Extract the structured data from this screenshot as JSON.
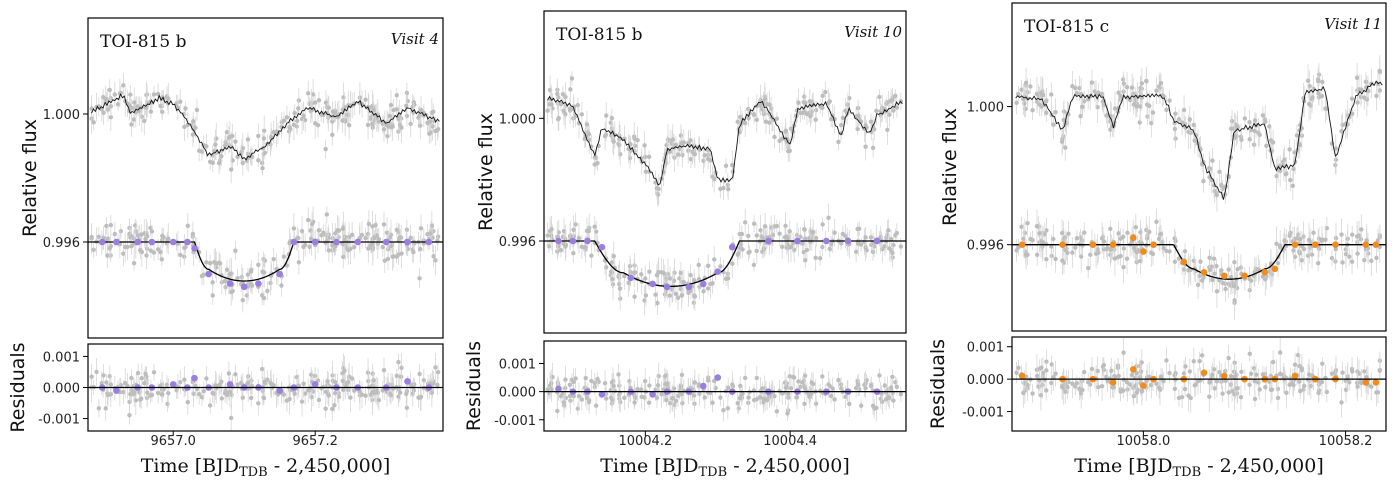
{
  "chart_data": [
    {
      "type": "scatter",
      "title": "TOI-815 b",
      "annotation": "Visit 4",
      "xlabel": "Time [BJD",
      "xlabel_sub": "TDB",
      "xlabel_tail": " - 2,450,000]",
      "ylabel": "Relative flux",
      "residual_ylabel": "Residuals",
      "bin_color": "#9b7fe0",
      "xlim": [
        9656.88,
        9657.38
      ],
      "xticks": [
        "9657.0",
        "9657.2"
      ],
      "xtick_values": [
        9657.0,
        9657.2
      ],
      "ylim": [
        0.993,
        1.003
      ],
      "yticks": [
        "1.000",
        "0.996"
      ],
      "ytick_values": [
        1.0,
        0.996
      ],
      "res_ylim": [
        -0.0014,
        0.0014
      ],
      "res_yticks": [
        "0.001",
        "0.000",
        "-0.001"
      ],
      "res_ytick_values": [
        0.001,
        0.0,
        -0.001
      ],
      "transit": {
        "t1": 9657.03,
        "t2": 9657.05,
        "t3": 9657.15,
        "t4": 9657.17,
        "baseline": 0.996,
        "depth": 0.00122
      },
      "raw_offset": 0.004,
      "binned_model_y": [
        0.996,
        0.996,
        0.996,
        0.996,
        0.996,
        0.996,
        0.9958,
        0.995,
        0.9947,
        0.9946,
        0.9947,
        0.995,
        0.996,
        0.996,
        0.996,
        0.996,
        0.996,
        0.996,
        0.996
      ],
      "binned_x": [
        9656.9,
        9656.92,
        9656.95,
        9656.97,
        9657.0,
        9657.02,
        9657.03,
        9657.05,
        9657.08,
        9657.1,
        9657.12,
        9657.15,
        9657.17,
        9657.2,
        9657.23,
        9657.26,
        9657.3,
        9657.33,
        9657.36
      ],
      "binned_res": [
        0.0,
        -0.0001,
        0.0,
        0.0,
        0.0001,
        0.0,
        0.0003,
        0.0,
        0.0001,
        0.0,
        0.0,
        -0.0001,
        0.0,
        0.0001,
        0.0,
        0.0,
        0.0,
        0.0002,
        0.0
      ],
      "raw_trend_knots": [
        [
          9656.88,
          1.0
        ],
        [
          9656.93,
          1.0006
        ],
        [
          9656.94,
          1.0
        ],
        [
          9656.98,
          1.0005
        ],
        [
          9657.0,
          1.0003
        ],
        [
          9657.02,
          0.9998
        ],
        [
          9657.05,
          0.9987
        ],
        [
          9657.08,
          0.999
        ],
        [
          9657.1,
          0.9986
        ],
        [
          9657.13,
          0.999
        ],
        [
          9657.16,
          0.9997
        ],
        [
          9657.19,
          1.0002
        ],
        [
          9657.23,
          0.9999
        ],
        [
          9657.26,
          1.0004
        ],
        [
          9657.3,
          0.9997
        ],
        [
          9657.33,
          1.0002
        ],
        [
          9657.37,
          0.9998
        ]
      ]
    },
    {
      "type": "scatter",
      "title": "TOI-815 b",
      "annotation": "Visit 10",
      "xlabel": "Time [BJD",
      "xlabel_sub": "TDB",
      "xlabel_tail": " - 2,450,000]",
      "ylabel": "Relative flux",
      "residual_ylabel": "Residuals",
      "bin_color": "#9b7fe0",
      "xlim": [
        10004.06,
        10004.56
      ],
      "xticks": [
        "10004.2",
        "10004.4"
      ],
      "xtick_values": [
        10004.2,
        10004.4
      ],
      "ylim": [
        0.993,
        1.0035
      ],
      "yticks": [
        "1.000",
        "0.996"
      ],
      "ytick_values": [
        1.0,
        0.996
      ],
      "res_ylim": [
        -0.0014,
        0.0018
      ],
      "res_yticks": [
        "0.001",
        "0.000",
        "-0.001"
      ],
      "res_ytick_values": [
        0.001,
        0.0,
        -0.001
      ],
      "transit": {
        "t1": 10004.13,
        "t2": 10004.17,
        "t3": 10004.3,
        "t4": 10004.33,
        "baseline": 0.996,
        "depth": 0.00148
      },
      "raw_offset": 0.004,
      "binned_model_y": [
        0.996,
        0.996,
        0.996,
        0.9958,
        0.9948,
        0.9946,
        0.9945,
        0.9945,
        0.9946,
        0.995,
        0.9958,
        0.996,
        0.996,
        0.996,
        0.996,
        0.996
      ],
      "binned_x": [
        10004.08,
        10004.1,
        10004.12,
        10004.14,
        10004.18,
        10004.21,
        10004.23,
        10004.26,
        10004.28,
        10004.3,
        10004.32,
        10004.37,
        10004.41,
        10004.45,
        10004.48,
        10004.52
      ],
      "binned_res": [
        0.0001,
        0.0,
        0.0,
        -0.0001,
        0.0,
        -0.0001,
        0.0,
        0.0,
        0.0002,
        0.0005,
        0.0,
        0.0,
        0.0,
        0.0,
        0.0,
        0.0
      ],
      "raw_trend_knots": [
        [
          10004.06,
          1.0007
        ],
        [
          10004.1,
          1.0004
        ],
        [
          10004.12,
          0.9993
        ],
        [
          10004.13,
          0.9988
        ],
        [
          10004.14,
          0.9997
        ],
        [
          10004.17,
          0.9993
        ],
        [
          10004.2,
          0.9985
        ],
        [
          10004.22,
          0.9978
        ],
        [
          10004.23,
          0.999
        ],
        [
          10004.26,
          0.9991
        ],
        [
          10004.29,
          0.999
        ],
        [
          10004.3,
          0.998
        ],
        [
          10004.32,
          0.998
        ],
        [
          10004.33,
          0.9998
        ],
        [
          10004.36,
          1.0006
        ],
        [
          10004.4,
          0.9991
        ],
        [
          10004.41,
          1.0003
        ],
        [
          10004.45,
          1.0005
        ],
        [
          10004.47,
          0.9994
        ],
        [
          10004.48,
          1.0003
        ],
        [
          10004.51,
          0.9995
        ],
        [
          10004.52,
          1.0001
        ],
        [
          10004.55,
          1.0005
        ]
      ]
    },
    {
      "type": "scatter",
      "title": "TOI-815 c",
      "annotation": "Visit 11",
      "xlabel": "Time [BJD",
      "xlabel_sub": "TDB",
      "xlabel_tail": " - 2,450,000]",
      "ylabel": "Relative flux",
      "residual_ylabel": "Residuals",
      "bin_color": "#f08c1e",
      "xlim": [
        10057.87,
        10058.24
      ],
      "xticks": [
        "10058.0",
        "10058.2"
      ],
      "xtick_values": [
        10058.0,
        10058.2
      ],
      "ylim": [
        0.9935,
        1.003
      ],
      "yticks": [
        "1.000",
        "0.996"
      ],
      "ytick_values": [
        1.0,
        0.996
      ],
      "res_ylim": [
        -0.0016,
        0.0013
      ],
      "res_yticks": [
        "0.001",
        "0.000",
        "-0.001"
      ],
      "res_ytick_values": [
        0.001,
        0.0,
        -0.001
      ],
      "transit": {
        "t1": 10058.03,
        "t2": 10058.05,
        "t3": 10058.12,
        "t4": 10058.14,
        "baseline": 0.996,
        "depth": 0.001
      },
      "raw_offset": 0.004,
      "binned_model_y": [
        0.996,
        0.996,
        0.996,
        0.996,
        0.9962,
        0.9958,
        0.996,
        0.9955,
        0.9952,
        0.9951,
        0.9951,
        0.9952,
        0.9953,
        0.996,
        0.996,
        0.996,
        0.996,
        0.996
      ],
      "binned_x": [
        10057.88,
        10057.92,
        10057.95,
        10057.97,
        10057.99,
        10058.0,
        10058.01,
        10058.04,
        10058.06,
        10058.08,
        10058.1,
        10058.12,
        10058.13,
        10058.15,
        10058.17,
        10058.19,
        10058.22,
        10058.23
      ],
      "binned_res": [
        0.0001,
        0.0,
        0.0,
        -0.0001,
        0.0003,
        -0.0002,
        0.0,
        0.0,
        0.0002,
        0.0001,
        0.0,
        0.0,
        0.0,
        0.0001,
        0.0,
        0.0,
        -0.0001,
        -0.0001
      ],
      "raw_trend_knots": [
        [
          10057.87,
          1.0003
        ],
        [
          10057.9,
          1.0002
        ],
        [
          10057.92,
          0.9993
        ],
        [
          10057.93,
          1.0003
        ],
        [
          10057.96,
          1.0003
        ],
        [
          10057.97,
          0.9994
        ],
        [
          10057.98,
          1.0003
        ],
        [
          10058.02,
          1.0003
        ],
        [
          10058.03,
          0.9996
        ],
        [
          10058.05,
          0.9993
        ],
        [
          10058.06,
          0.9983
        ],
        [
          10058.08,
          0.9973
        ],
        [
          10058.09,
          0.9993
        ],
        [
          10058.12,
          0.9995
        ],
        [
          10058.13,
          0.9982
        ],
        [
          10058.15,
          0.9983
        ],
        [
          10058.16,
          1.0004
        ],
        [
          10058.18,
          1.0005
        ],
        [
          10058.19,
          0.9985
        ],
        [
          10058.21,
          1.0003
        ],
        [
          10058.23,
          1.0007
        ]
      ]
    }
  ]
}
